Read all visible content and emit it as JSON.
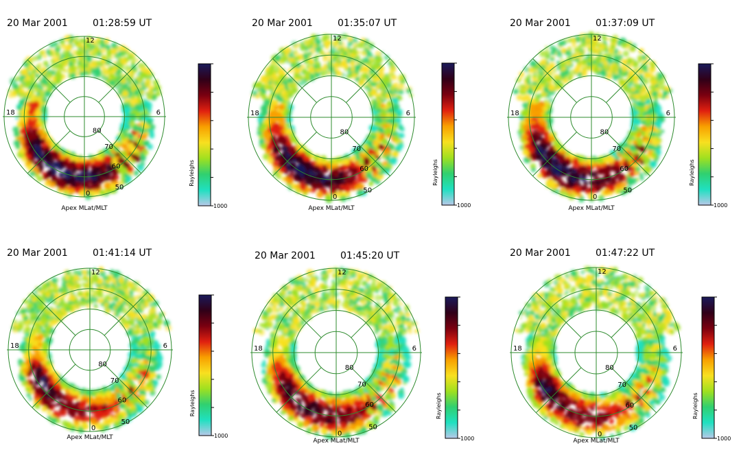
{
  "colors": {
    "grid": "#2e8b2e",
    "text": "#000000",
    "background": "#ffffff",
    "colorscale": [
      "#b8c8e8",
      "#20e0c0",
      "#30d070",
      "#a0e020",
      "#f8e020",
      "#f8a000",
      "#e02010",
      "#7a0010",
      "#300018",
      "#1a1a5a"
    ]
  },
  "chart_data": [
    {
      "type": "heatmap",
      "date": "20 Mar 2001",
      "time": "01:28:59 UT",
      "xlabel": "Apex MLat/MLT",
      "colorbar_label": "Rayleighs",
      "colorbar_min_label": "1000",
      "lat_labels": [
        "50",
        "60",
        "70",
        "80"
      ],
      "mlt_labels": [
        "12",
        "6",
        "0",
        "18"
      ],
      "oval_intensity_by_mlt": [
        {
          "mlt": 18,
          "level": 0.6
        },
        {
          "mlt": 20,
          "level": 0.95
        },
        {
          "mlt": 22,
          "level": 1.0
        },
        {
          "mlt": 0,
          "level": 0.95
        },
        {
          "mlt": 2,
          "level": 0.85
        },
        {
          "mlt": 4,
          "level": 0.8
        },
        {
          "mlt": 6,
          "level": 0.4
        }
      ]
    },
    {
      "type": "heatmap",
      "date": "20 Mar 2001",
      "time": "01:35:07 UT",
      "xlabel": "Apex MLat/MLT",
      "colorbar_label": "Rayleighs",
      "colorbar_min_label": "1000",
      "lat_labels": [
        "50",
        "60",
        "70",
        "80"
      ],
      "mlt_labels": [
        "12",
        "6",
        "0",
        "18"
      ],
      "oval_intensity_by_mlt": [
        {
          "mlt": 18,
          "level": 0.55
        },
        {
          "mlt": 20,
          "level": 0.9
        },
        {
          "mlt": 22,
          "level": 1.0
        },
        {
          "mlt": 0,
          "level": 0.9
        },
        {
          "mlt": 2,
          "level": 0.75
        },
        {
          "mlt": 4,
          "level": 0.7
        },
        {
          "mlt": 6,
          "level": 0.45
        }
      ]
    },
    {
      "type": "heatmap",
      "date": "20 Mar 2001",
      "time": "01:37:09 UT",
      "xlabel": "Apex MLat/MLT",
      "colorbar_label": "Rayleighs",
      "colorbar_min_label": "1000",
      "lat_labels": [
        "50",
        "60",
        "70",
        "80"
      ],
      "mlt_labels": [
        "12",
        "6",
        "0",
        "18"
      ],
      "oval_intensity_by_mlt": [
        {
          "mlt": 18,
          "level": 0.6
        },
        {
          "mlt": 20,
          "level": 0.95
        },
        {
          "mlt": 22,
          "level": 1.0
        },
        {
          "mlt": 0,
          "level": 0.9
        },
        {
          "mlt": 2,
          "level": 0.8
        },
        {
          "mlt": 4,
          "level": 0.75
        },
        {
          "mlt": 6,
          "level": 0.45
        }
      ]
    },
    {
      "type": "heatmap",
      "date": "20 Mar 2001",
      "time": "01:41:14 UT",
      "xlabel": "Apex MLat/MLT",
      "colorbar_label": "Rayleighs",
      "colorbar_min_label": "1000",
      "lat_labels": [
        "50",
        "60",
        "70",
        "80"
      ],
      "mlt_labels": [
        "12",
        "6",
        "0",
        "18"
      ],
      "oval_intensity_by_mlt": [
        {
          "mlt": 18,
          "level": 0.5
        },
        {
          "mlt": 20,
          "level": 0.95
        },
        {
          "mlt": 22,
          "level": 0.85
        },
        {
          "mlt": 0,
          "level": 0.75
        },
        {
          "mlt": 2,
          "level": 0.6
        },
        {
          "mlt": 4,
          "level": 0.7
        },
        {
          "mlt": 6,
          "level": 0.4
        }
      ]
    },
    {
      "type": "heatmap",
      "date": "20 Mar 2001",
      "time": "01:45:20 UT",
      "xlabel": "Apex MLat/MLT",
      "colorbar_label": "Rayleighs",
      "colorbar_min_label": "1000",
      "lat_labels": [
        "50",
        "60",
        "70",
        "80"
      ],
      "mlt_labels": [
        "12",
        "6",
        "0",
        "18"
      ],
      "oval_intensity_by_mlt": [
        {
          "mlt": 18,
          "level": 0.45
        },
        {
          "mlt": 20,
          "level": 0.85
        },
        {
          "mlt": 22,
          "level": 0.9
        },
        {
          "mlt": 0,
          "level": 0.85
        },
        {
          "mlt": 2,
          "level": 0.7
        },
        {
          "mlt": 4,
          "level": 0.65
        },
        {
          "mlt": 6,
          "level": 0.4
        }
      ]
    },
    {
      "type": "heatmap",
      "date": "20 Mar 2001",
      "time": "01:47:22 UT",
      "xlabel": "Apex MLat/MLT",
      "colorbar_label": "Rayleighs",
      "colorbar_min_label": "1000",
      "lat_labels": [
        "50",
        "60",
        "70",
        "80"
      ],
      "mlt_labels": [
        "12",
        "6",
        "0",
        "18"
      ],
      "oval_intensity_by_mlt": [
        {
          "mlt": 18,
          "level": 0.45
        },
        {
          "mlt": 20,
          "level": 0.95
        },
        {
          "mlt": 22,
          "level": 0.85
        },
        {
          "mlt": 0,
          "level": 0.8
        },
        {
          "mlt": 2,
          "level": 0.65
        },
        {
          "mlt": 4,
          "level": 0.65
        },
        {
          "mlt": 6,
          "level": 0.4
        }
      ]
    }
  ]
}
